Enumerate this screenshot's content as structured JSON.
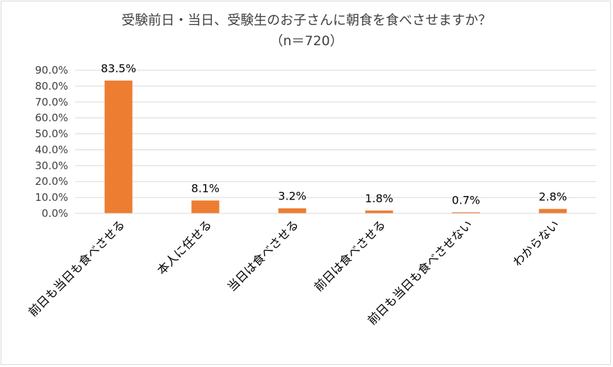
{
  "chart_data": {
    "type": "bar",
    "title": "受験前日・当日、受験生のお子さんに朝食を食べさせますか？",
    "subtitle": "（n＝720）",
    "categories": [
      "前日も当日も食べさせる",
      "本人に任せる",
      "当日は食べさせる",
      "前日は食べさせる",
      "前日も当日も食べさせない",
      "わからない"
    ],
    "values": [
      83.5,
      8.1,
      3.2,
      1.8,
      0.7,
      2.8
    ],
    "data_labels": [
      "83.5%",
      "8.1%",
      "3.2%",
      "1.8%",
      "0.7%",
      "2.8%"
    ],
    "yticks": [
      "0.0%",
      "10.0%",
      "20.0%",
      "30.0%",
      "40.0%",
      "50.0%",
      "60.0%",
      "70.0%",
      "80.0%",
      "90.0%"
    ],
    "ylim": [
      0,
      90
    ],
    "grid": true,
    "bar_color": "#ed7d31",
    "grid_color": "#d9d9d9"
  }
}
